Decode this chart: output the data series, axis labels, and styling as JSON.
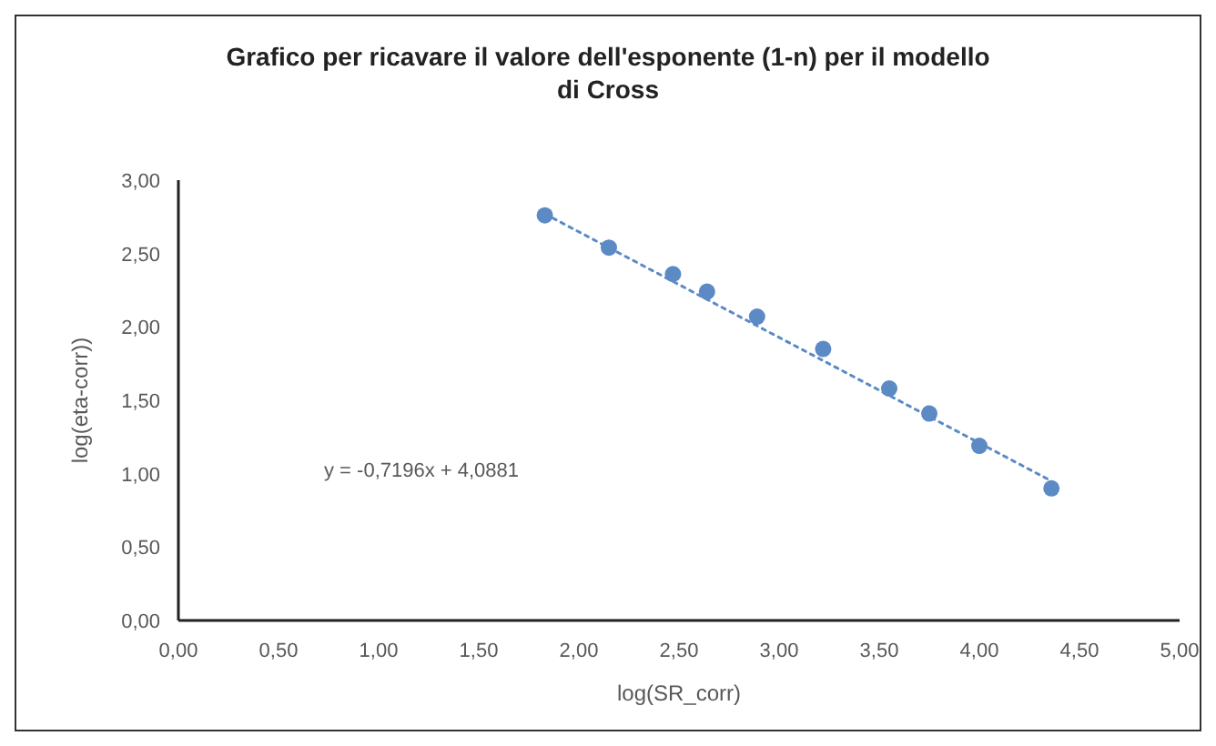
{
  "chart_data": {
    "type": "scatter",
    "title": "Grafico per ricavare il valore dell'esponente (1-n) per il modello di Cross",
    "xlabel": "log(SR_corr)",
    "ylabel": "log(eta-corr))",
    "xlim": [
      0,
      5
    ],
    "ylim": [
      0,
      3
    ],
    "xticks": [
      {
        "value": 0,
        "label": "0,00"
      },
      {
        "value": 0.5,
        "label": "0,50"
      },
      {
        "value": 1,
        "label": "1,00"
      },
      {
        "value": 1.5,
        "label": "1,50"
      },
      {
        "value": 2,
        "label": "2,00"
      },
      {
        "value": 2.5,
        "label": "2,50"
      },
      {
        "value": 3,
        "label": "3,00"
      },
      {
        "value": 3.5,
        "label": "3,50"
      },
      {
        "value": 4,
        "label": "4,00"
      },
      {
        "value": 4.5,
        "label": "4,50"
      },
      {
        "value": 5,
        "label": "5,00"
      }
    ],
    "yticks": [
      {
        "value": 0,
        "label": "0,00"
      },
      {
        "value": 0.5,
        "label": "0,50"
      },
      {
        "value": 1,
        "label": "1,00"
      },
      {
        "value": 1.5,
        "label": "1,50"
      },
      {
        "value": 2,
        "label": "2,00"
      },
      {
        "value": 2.5,
        "label": "2,50"
      },
      {
        "value": 3,
        "label": "3,00"
      }
    ],
    "grid": false,
    "marker": "circle",
    "series": [
      {
        "color": "#5b8ac4",
        "x": [
          1.83,
          2.15,
          2.47,
          2.64,
          2.89,
          3.22,
          3.55,
          3.75,
          4.0,
          4.36
        ],
        "values": [
          2.76,
          2.54,
          2.36,
          2.24,
          2.07,
          1.85,
          1.58,
          1.41,
          1.19,
          0.9
        ]
      },
      {
        "type": "line",
        "color": "#5b8ac4",
        "line_style": "dotted",
        "marker": "none",
        "x": [
          1.83,
          4.36
        ],
        "values": [
          2.77,
          0.95
        ]
      }
    ],
    "annotations": [
      "y = -0,7196x + 4,0881"
    ]
  }
}
